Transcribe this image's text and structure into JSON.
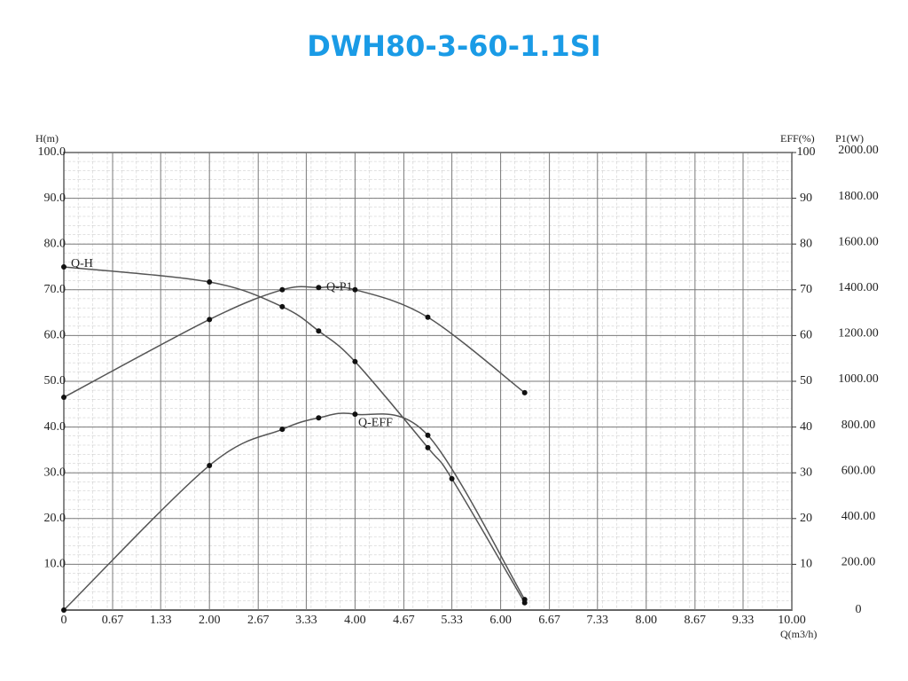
{
  "chart_data": {
    "type": "line",
    "title": "DWH80-3-60-1.1SI",
    "y_label": "H(m)",
    "y3_label": "EFF(%)",
    "y2_label": "P1(W)",
    "x_label": "Q(m3/h)",
    "xlim": [
      0,
      10
    ],
    "xticks": [
      0,
      0.67,
      1.33,
      {
        "value": 2,
        "label": "2.00"
      },
      2.67,
      3.33,
      {
        "value": 4,
        "label": "4.00"
      },
      4.67,
      5.33,
      {
        "value": 6,
        "label": "6.00"
      },
      6.67,
      7.33,
      {
        "value": 8,
        "label": "8.00"
      },
      8.67,
      9.33,
      {
        "value": 10,
        "label": "10.00"
      }
    ],
    "ylim": [
      0,
      100
    ],
    "yticks": [
      {
        "value": 10,
        "label": "10.0"
      },
      {
        "value": 20,
        "label": "20.0"
      },
      {
        "value": 30,
        "label": "30.0"
      },
      {
        "value": 40,
        "label": "40.0"
      },
      {
        "value": 50,
        "label": "50.0"
      },
      {
        "value": 60,
        "label": "60.0"
      },
      {
        "value": 70,
        "label": "70.0"
      },
      {
        "value": 80,
        "label": "80.0"
      },
      {
        "value": 90,
        "label": "90.0"
      },
      {
        "value": 100,
        "label": "100.0"
      }
    ],
    "y3lim": [
      0,
      100
    ],
    "y3ticks": [
      10,
      20,
      30,
      40,
      50,
      60,
      70,
      80,
      90,
      100
    ],
    "y2lim": [
      0,
      2000
    ],
    "y2ticks": [
      0,
      {
        "value": 200,
        "label": "200.00"
      },
      {
        "value": 400,
        "label": "400.00"
      },
      {
        "value": 600,
        "label": "600.00"
      },
      {
        "value": 800,
        "label": "800.00"
      },
      {
        "value": 1000,
        "label": "1000.00"
      },
      {
        "value": 1200,
        "label": "1200.00"
      },
      {
        "value": 1400,
        "label": "1400.00"
      },
      {
        "value": 1600,
        "label": "1600.00"
      },
      {
        "value": 1800,
        "label": "1800.00"
      },
      {
        "value": 2000,
        "label": "2000.00"
      }
    ],
    "grid": true,
    "series": [
      {
        "name": "Q-H",
        "color": "#555555",
        "axis": "y",
        "x": [
          0,
          2,
          3,
          3.5,
          4,
          5,
          5.33,
          6.33
        ],
        "values": [
          75,
          71.7,
          66.3,
          61,
          54.3,
          35.5,
          28.7,
          1.6
        ]
      },
      {
        "name": "Q-P1",
        "color": "#555555",
        "axis": "y2",
        "x": [
          0,
          2,
          3,
          3.5,
          4,
          5,
          6.33
        ],
        "values": [
          930,
          1270,
          1400,
          1410,
          1400,
          1280,
          950
        ]
      },
      {
        "name": "Q-EFF",
        "color": "#555555",
        "axis": "y3",
        "x": [
          0,
          2,
          3,
          3.5,
          4,
          5,
          6.33
        ],
        "values": [
          0,
          31.6,
          39.5,
          42,
          42.8,
          38.2,
          2.3
        ]
      }
    ]
  }
}
